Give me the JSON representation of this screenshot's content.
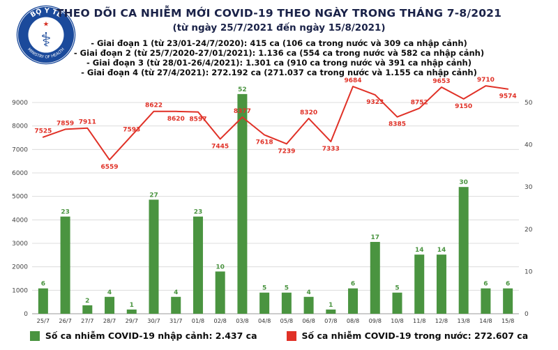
{
  "logo": {
    "text_top": "BỘ Y TẾ",
    "text_bottom": "MINISTRY OF HEALTH"
  },
  "header": {
    "title": "THEO DÕI CA NHIỄM MỚI COVID-19 THEO NGÀY TRONG THÁNG 7-8/2021",
    "subtitle": "(từ ngày 25/7/2021 đến ngày 15/8/2021)",
    "bullets": [
      "- Giai đoạn 1 (từ 23/01-24/7/2020): 415 ca (106 ca trong nước và 309 ca nhập cảnh)",
      "- Giai đoạn 2 (từ 25/7/2020-27/01/2021): 1.136 ca (554 ca trong nước và 582 ca nhập cảnh)",
      "- Giai đoạn 3 (từ 28/01-26/4/2021): 1.301 ca (910 ca trong nước và 391 ca nhập cảnh)",
      "- Giai đoạn 4 (từ 27/4/2021): 272.192 ca (271.037 ca trong nước và 1.155 ca nhập cảnh)"
    ]
  },
  "chart_data": {
    "type": "combo (bar + line)",
    "categories": [
      "25/7",
      "26/7",
      "27/7",
      "28/7",
      "29/7",
      "30/7",
      "31/7",
      "01/8",
      "02/8",
      "03/8",
      "04/8",
      "05/8",
      "06/8",
      "07/8",
      "08/8",
      "09/8",
      "10/8",
      "11/8",
      "12/8",
      "13/8",
      "14/8",
      "15/8"
    ],
    "series": [
      {
        "name": "Số ca nhiễm COVID-19 nhập cảnh",
        "type": "bar",
        "axis": "right",
        "color": "#4a9440",
        "values": [
          6,
          23,
          2,
          4,
          1,
          27,
          4,
          23,
          10,
          52,
          5,
          5,
          4,
          1,
          6,
          17,
          5,
          14,
          14,
          30,
          6,
          6
        ]
      },
      {
        "name": "Số ca nhiễm COVID-19 trong nước",
        "type": "line",
        "axis": "left",
        "color": "#e03127",
        "values": [
          7525,
          7859,
          7911,
          6559,
          7593,
          8622,
          8620,
          8597,
          7445,
          8377,
          7618,
          7239,
          8320,
          7333,
          9684,
          9323,
          8385,
          8752,
          9653,
          9150,
          9710,
          9574
        ]
      }
    ],
    "left_axis": {
      "ticks": [
        0,
        1000,
        2000,
        3000,
        4000,
        5000,
        6000,
        7000,
        8000,
        9000
      ],
      "range": [
        0,
        10100
      ]
    },
    "right_axis": {
      "ticks": [
        0,
        10,
        20,
        30,
        40,
        50
      ],
      "range": [
        0,
        56
      ]
    },
    "grid": "horizontal",
    "legend_position": "bottom",
    "line_label_positions": [
      "above",
      "above",
      "above",
      "below",
      "above",
      "above",
      "below",
      "below",
      "below",
      "above",
      "below",
      "below",
      "above",
      "below",
      "above",
      "below",
      "below",
      "above",
      "above",
      "below",
      "above",
      "below"
    ]
  },
  "legend": {
    "items": [
      {
        "label": "Số ca nhiễm COVID-19 nhập cảnh: 2.437 ca",
        "color": "#4a9440"
      },
      {
        "label": "Số ca nhiễm COVID-19 trong nước: 272.607 ca",
        "color": "#e03127"
      }
    ]
  }
}
